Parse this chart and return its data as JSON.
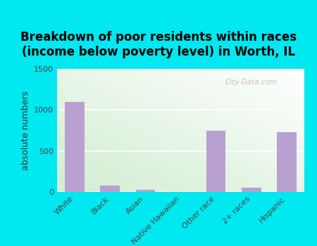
{
  "title": "Breakdown of poor residents within races\n(income below poverty level) in Worth, IL",
  "categories": [
    "White",
    "Black",
    "Asian",
    "Native Hawaiian",
    "Other race",
    "2+ races",
    "Hispanic"
  ],
  "values": [
    1100,
    75,
    30,
    0,
    750,
    55,
    730
  ],
  "bar_color": "#b8a0d0",
  "ylabel": "absolute numbers",
  "ylim": [
    0,
    1500
  ],
  "yticks": [
    0,
    500,
    1000,
    1500
  ],
  "background_color": "#00e8f0",
  "plot_bg_color_top_left": "#d4edd4",
  "plot_bg_color_bottom_right": "#f8f8f8",
  "title_fontsize": 12,
  "axis_label_fontsize": 9,
  "tick_fontsize": 8,
  "watermark": "City-Data.com"
}
